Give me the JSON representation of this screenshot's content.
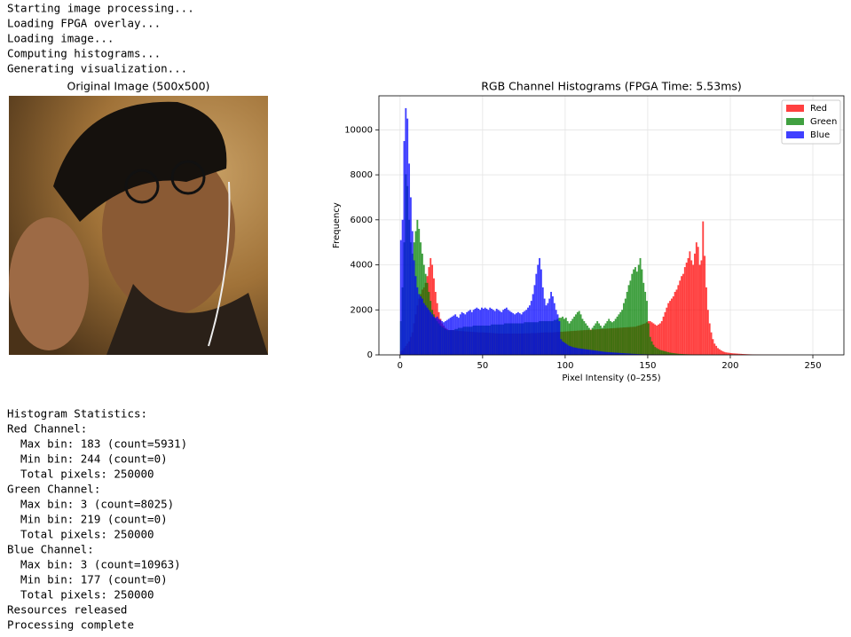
{
  "log": [
    "Starting image processing...",
    "Loading FPGA overlay...",
    "Loading image...",
    "Computing histograms...",
    "Generating visualization..."
  ],
  "image": {
    "title": "Original Image (500x500)"
  },
  "chart_data": {
    "type": "histogram",
    "title": "RGB Channel Histograms (FPGA Time: 5.53ms)",
    "xlabel": "Pixel Intensity (0–255)",
    "ylabel": "Frequency",
    "bins": [
      0,
      1,
      2,
      3,
      4,
      5,
      6,
      7,
      8,
      9,
      10,
      11,
      12,
      13,
      14,
      15,
      16,
      17,
      18,
      19,
      20,
      21,
      22,
      23,
      24,
      25,
      26,
      27,
      28,
      29,
      30,
      31,
      32,
      33,
      34,
      35,
      36,
      37,
      38,
      39,
      40,
      41,
      42,
      43,
      44,
      45,
      46,
      47,
      48,
      49,
      50,
      51,
      52,
      53,
      54,
      55,
      56,
      57,
      58,
      59,
      60,
      61,
      62,
      63,
      64,
      65,
      66,
      67,
      68,
      69,
      70,
      71,
      72,
      73,
      74,
      75,
      76,
      77,
      78,
      79,
      80,
      81,
      82,
      83,
      84,
      85,
      86,
      87,
      88,
      89,
      90,
      91,
      92,
      93,
      94,
      95,
      96,
      97,
      98,
      99,
      100,
      101,
      102,
      103,
      104,
      105,
      106,
      107,
      108,
      109,
      110,
      111,
      112,
      113,
      114,
      115,
      116,
      117,
      118,
      119,
      120,
      121,
      122,
      123,
      124,
      125,
      126,
      127,
      128,
      129,
      130,
      131,
      132,
      133,
      134,
      135,
      136,
      137,
      138,
      139,
      140,
      141,
      142,
      143,
      144,
      145,
      146,
      147,
      148,
      149,
      150,
      151,
      152,
      153,
      154,
      155,
      156,
      157,
      158,
      159,
      160,
      161,
      162,
      163,
      164,
      165,
      166,
      167,
      168,
      169,
      170,
      171,
      172,
      173,
      174,
      175,
      176,
      177,
      178,
      179,
      180,
      181,
      182,
      183,
      184,
      185,
      186,
      187,
      188,
      189,
      190,
      191,
      192,
      193,
      194,
      195,
      196,
      197,
      198,
      199,
      200,
      201,
      202,
      203,
      204,
      205,
      206,
      207,
      208,
      209,
      210,
      211,
      212,
      213,
      214,
      215,
      216,
      217,
      218,
      219,
      220,
      221,
      222,
      223,
      224,
      225,
      226,
      227,
      228,
      229,
      230,
      231,
      232,
      233,
      234,
      235,
      236,
      237,
      238,
      239,
      240,
      241,
      242,
      243,
      244,
      245,
      246,
      247,
      248,
      249,
      250,
      251,
      252,
      253,
      254,
      255,
      256
    ],
    "series": [
      {
        "name": "Red",
        "color": "#ff0000",
        "values": [
          150,
          200,
          300,
          400,
          500,
          600,
          800,
          1000,
          1400,
          1800,
          2200,
          2500,
          2700,
          2900,
          3000,
          3200,
          3500,
          3900,
          4300,
          4000,
          3400,
          2800,
          2300,
          1900,
          1600,
          1400,
          1300,
          1200,
          1150,
          1100,
          1100,
          1100,
          1100,
          1080,
          1080,
          1060,
          1060,
          1050,
          1050,
          1040,
          1040,
          1030,
          1030,
          1020,
          1020,
          1010,
          1010,
          1000,
          1000,
          1000,
          1000,
          990,
          990,
          980,
          980,
          970,
          970,
          960,
          960,
          950,
          950,
          950,
          950,
          950,
          950,
          950,
          950,
          950,
          950,
          950,
          950,
          950,
          950,
          950,
          950,
          960,
          960,
          960,
          960,
          970,
          970,
          970,
          970,
          980,
          980,
          990,
          990,
          1000,
          1000,
          1000,
          1000,
          1000,
          1000,
          1010,
          1010,
          1020,
          1020,
          1030,
          1030,
          1040,
          1040,
          1050,
          1050,
          1060,
          1060,
          1070,
          1070,
          1080,
          1080,
          1090,
          1090,
          1100,
          1100,
          1110,
          1110,
          1120,
          1120,
          1130,
          1130,
          1140,
          1140,
          1150,
          1150,
          1160,
          1160,
          1170,
          1170,
          1180,
          1180,
          1190,
          1190,
          1200,
          1200,
          1210,
          1210,
          1220,
          1220,
          1230,
          1230,
          1240,
          1240,
          1250,
          1250,
          1280,
          1300,
          1320,
          1350,
          1380,
          1400,
          1450,
          1500,
          1500,
          1450,
          1400,
          1350,
          1300,
          1350,
          1400,
          1500,
          1700,
          1900,
          2100,
          2300,
          2400,
          2500,
          2600,
          2800,
          2900,
          3100,
          3300,
          3500,
          3600,
          3900,
          4100,
          4300,
          4600,
          4200,
          4000,
          4500,
          5000,
          4800,
          4000,
          4200,
          5931,
          4400,
          3000,
          2000,
          1400,
          1000,
          700,
          500,
          400,
          300,
          250,
          200,
          160,
          130,
          110,
          100,
          90,
          80,
          70,
          65,
          60,
          55,
          50,
          45,
          40,
          36,
          32,
          28,
          25,
          22,
          20,
          18,
          16,
          14,
          12,
          11,
          10,
          9,
          8,
          8,
          7,
          7,
          6,
          6,
          5,
          5,
          4,
          4,
          4,
          3,
          3,
          3,
          2,
          2,
          2,
          2,
          2,
          2,
          1,
          1,
          1,
          0,
          0,
          0,
          0,
          0,
          0,
          0,
          0,
          0,
          0,
          0,
          0
        ]
      },
      {
        "name": "Green",
        "color": "#008000",
        "values": [
          1500,
          3000,
          5000,
          8025,
          7500,
          6000,
          5000,
          4500,
          5000,
          5500,
          6000,
          5600,
          5000,
          4500,
          4000,
          3600,
          3200,
          2800,
          2400,
          2000,
          1800,
          1600,
          1500,
          1400,
          1300,
          1250,
          1200,
          1150,
          1100,
          1100,
          1100,
          1100,
          1100,
          1150,
          1150,
          1200,
          1200,
          1200,
          1250,
          1250,
          1250,
          1250,
          1250,
          1250,
          1300,
          1300,
          1300,
          1300,
          1300,
          1300,
          1300,
          1300,
          1300,
          1300,
          1300,
          1350,
          1350,
          1350,
          1350,
          1350,
          1350,
          1350,
          1350,
          1400,
          1400,
          1400,
          1400,
          1400,
          1400,
          1400,
          1400,
          1400,
          1400,
          1400,
          1400,
          1450,
          1450,
          1450,
          1450,
          1450,
          1450,
          1450,
          1450,
          1450,
          1500,
          1500,
          1500,
          1500,
          1500,
          1500,
          1500,
          1500,
          1500,
          1550,
          1550,
          1600,
          1650,
          1650,
          1700,
          1600,
          1650,
          1500,
          1400,
          1500,
          1600,
          1700,
          1800,
          1900,
          1950,
          1800,
          1600,
          1500,
          1400,
          1300,
          1200,
          1100,
          1200,
          1300,
          1400,
          1500,
          1400,
          1300,
          1200,
          1300,
          1400,
          1500,
          1600,
          1500,
          1450,
          1500,
          1600,
          1700,
          1800,
          1900,
          2000,
          2300,
          2500,
          2800,
          3100,
          3300,
          3600,
          3800,
          3900,
          3700,
          4000,
          4300,
          3800,
          3200,
          2800,
          2400,
          1400,
          800,
          600,
          450,
          350,
          300,
          260,
          220,
          200,
          180,
          160,
          140,
          120,
          100,
          90,
          80,
          70,
          60,
          50,
          45,
          40,
          36,
          32,
          28,
          25,
          22,
          20,
          18,
          16,
          14,
          12,
          11,
          10,
          9,
          8,
          7,
          6,
          6,
          5,
          5,
          4,
          4,
          4,
          3,
          3,
          3,
          2,
          2,
          2,
          2,
          2,
          2,
          2,
          1,
          1,
          1,
          1,
          1,
          1,
          1,
          1,
          1,
          1,
          1,
          1,
          1,
          1,
          1,
          1,
          0,
          0,
          0,
          0,
          0,
          0,
          0,
          0,
          0,
          0,
          0,
          0,
          0,
          0,
          0,
          0,
          0,
          0,
          0,
          0,
          0,
          0,
          0,
          0,
          0,
          0,
          0,
          0,
          0,
          0,
          0,
          0,
          0,
          0,
          0,
          0,
          0
        ]
      },
      {
        "name": "Blue",
        "color": "#0000ff",
        "values": [
          5100,
          6000,
          9500,
          10963,
          10500,
          8500,
          7000,
          5500,
          4200,
          3500,
          3000,
          2700,
          2600,
          2500,
          2300,
          2200,
          2100,
          2000,
          1900,
          1800,
          1700,
          1650,
          1700,
          1600,
          1550,
          1500,
          1450,
          1500,
          1550,
          1600,
          1650,
          1700,
          1750,
          1800,
          1700,
          1650,
          1800,
          1900,
          1850,
          1800,
          1900,
          1950,
          2000,
          1900,
          2000,
          2050,
          2100,
          2050,
          2000,
          2100,
          2050,
          2100,
          2050,
          2000,
          2100,
          2050,
          2000,
          1950,
          2050,
          2000,
          1950,
          1900,
          2000,
          2050,
          2100,
          2000,
          1950,
          1900,
          1850,
          1800,
          1850,
          1900,
          1850,
          1800,
          1900,
          1950,
          2000,
          2100,
          2200,
          2400,
          2700,
          3100,
          3600,
          4000,
          4300,
          3800,
          3000,
          2500,
          2200,
          2300,
          2500,
          2800,
          2600,
          2300,
          2000,
          1800,
          1500,
          700,
          600,
          550,
          500,
          450,
          400,
          380,
          350,
          330,
          320,
          300,
          290,
          280,
          270,
          260,
          250,
          240,
          230,
          220,
          210,
          200,
          190,
          180,
          170,
          160,
          150,
          140,
          130,
          125,
          120,
          115,
          110,
          105,
          100,
          95,
          90,
          85,
          80,
          75,
          70,
          65,
          60,
          55,
          50,
          46,
          42,
          38,
          34,
          30,
          28,
          26,
          24,
          22,
          20,
          18,
          16,
          15,
          14,
          13,
          12,
          11,
          10,
          9,
          8,
          7,
          7,
          6,
          6,
          5,
          5,
          4,
          4,
          3,
          3,
          3,
          2,
          2,
          2,
          1,
          1,
          0,
          0,
          0,
          0,
          0,
          0,
          0,
          0,
          0,
          0,
          0,
          0,
          0,
          0,
          0,
          0,
          0,
          0,
          0,
          0,
          0,
          0,
          0,
          0,
          0,
          0,
          0,
          0,
          0,
          0,
          0,
          0,
          0,
          0,
          0,
          0,
          0,
          0,
          0,
          0,
          0,
          0,
          0,
          0,
          0,
          0,
          0,
          0,
          0,
          0,
          0,
          0,
          0,
          0,
          0,
          0,
          0,
          0,
          0,
          0,
          0,
          0,
          0,
          0,
          0,
          0,
          0,
          0,
          0,
          0,
          0,
          0,
          0,
          0,
          0,
          0,
          0,
          0,
          0
        ]
      }
    ],
    "xlim": [
      -12.8,
      268.8
    ],
    "ylim": [
      0,
      11511
    ],
    "xticks": [
      0,
      50,
      100,
      150,
      200,
      250
    ],
    "yticks": [
      0,
      2000,
      4000,
      6000,
      8000,
      10000
    ],
    "grid": true,
    "legend": "upper right",
    "alpha": 0.75
  },
  "stats": [
    "Histogram Statistics:",
    "Red Channel:",
    "  Max bin: 183 (count=5931)",
    "  Min bin: 244 (count=0)",
    "  Total pixels: 250000",
    "Green Channel:",
    "  Max bin: 3 (count=8025)",
    "  Min bin: 219 (count=0)",
    "  Total pixels: 250000",
    "Blue Channel:",
    "  Max bin: 3 (count=10963)",
    "  Min bin: 177 (count=0)",
    "  Total pixels: 250000",
    "Resources released",
    "Processing complete"
  ]
}
